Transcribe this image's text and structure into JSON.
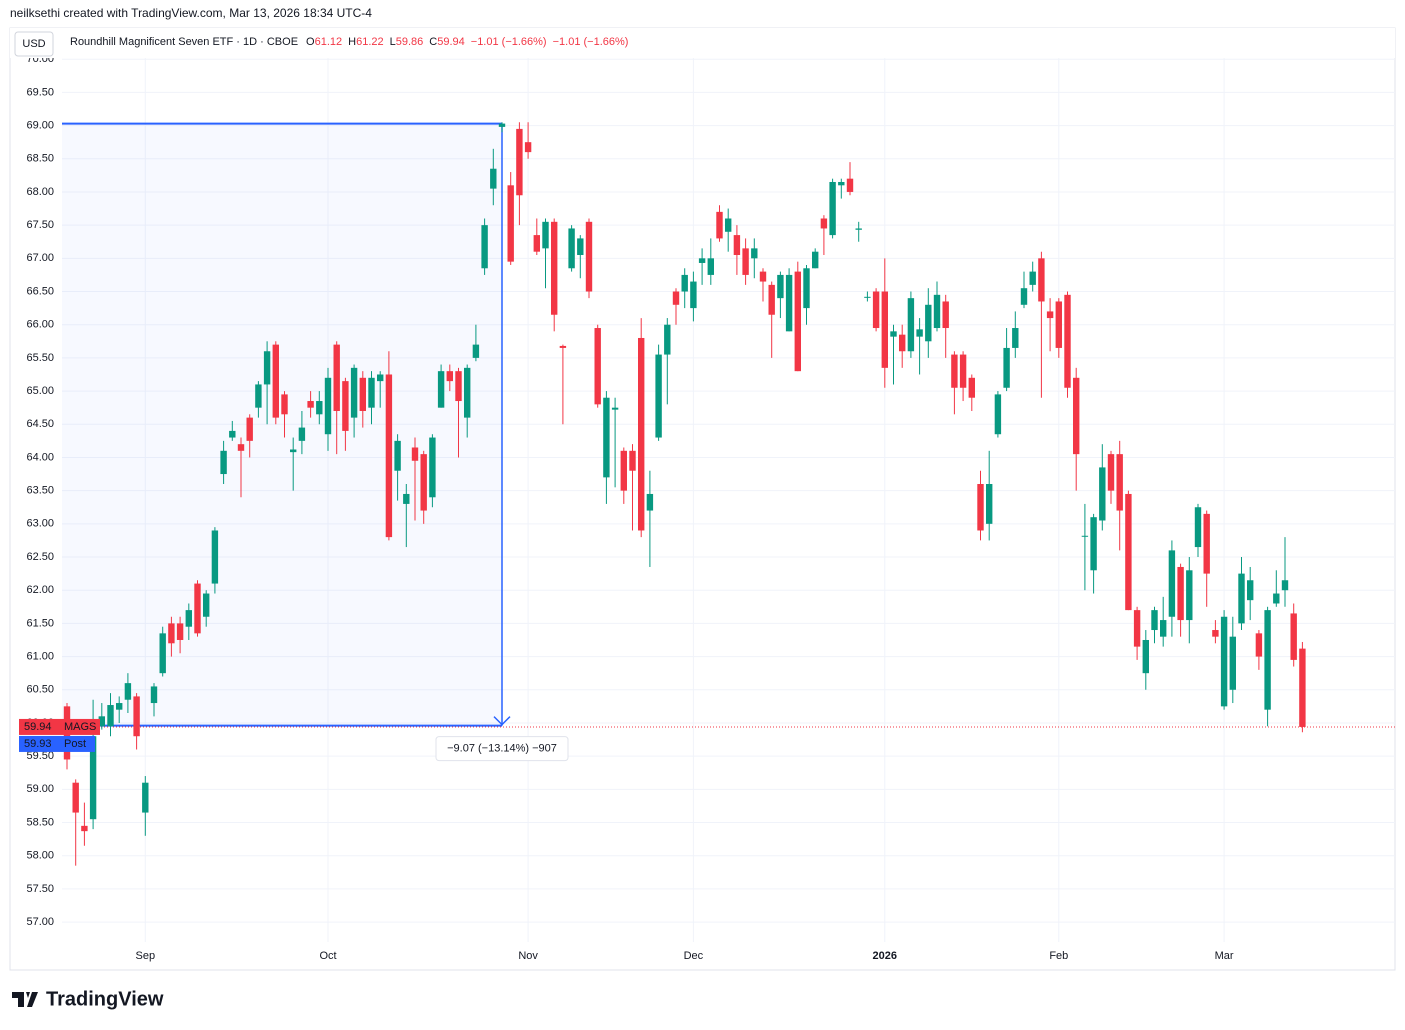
{
  "header": {
    "credit": "neilksethi created with TradingView.com, Mar 13, 2026 18:34 UTC-4",
    "currency": "USD",
    "logo": "TradingView"
  },
  "chart_data": {
    "type": "candlestick",
    "title": "Roundhill Magnificent Seven ETF · 1D · CBOE",
    "ohlc_legend": [
      {
        "key": "O",
        "text": "61.12"
      },
      {
        "key": "H",
        "text": "61.22"
      },
      {
        "key": "L",
        "text": "59.86"
      },
      {
        "key": "C",
        "text": "59.94"
      }
    ],
    "change": "−1.01 (−1.66%)",
    "change_post": "−1.01 (−1.66%)",
    "categories": [
      null,
      null,
      null,
      null,
      null,
      null,
      null,
      null,
      null,
      "Sep",
      null,
      null,
      null,
      null,
      null,
      null,
      null,
      null,
      null,
      null,
      null,
      null,
      null,
      null,
      null,
      null,
      null,
      null,
      null,
      null,
      "Oct",
      null,
      null,
      null,
      null,
      null,
      null,
      null,
      null,
      null,
      null,
      null,
      null,
      null,
      null,
      null,
      null,
      null,
      null,
      null,
      null,
      null,
      null,
      "Nov",
      null,
      null,
      null,
      null,
      null,
      null,
      null,
      null,
      null,
      null,
      null,
      null,
      null,
      null,
      null,
      null,
      null,
      null,
      "Dec",
      null,
      null,
      null,
      null,
      null,
      null,
      null,
      null,
      null,
      null,
      null,
      null,
      null,
      null,
      null,
      null,
      null,
      null,
      null,
      null,
      null,
      "2026",
      null,
      null,
      null,
      null,
      null,
      null,
      null,
      null,
      null,
      null,
      null,
      null,
      null,
      null,
      null,
      null,
      null,
      null,
      null,
      "Feb",
      null,
      null,
      null,
      null,
      null,
      null,
      null,
      null,
      null,
      null,
      null,
      null,
      null,
      null,
      null,
      null,
      null,
      null,
      "Mar",
      null,
      null,
      null,
      null,
      null,
      null,
      null,
      null,
      null
    ],
    "series": [
      {
        "name": "MAGS",
        "up_color": "#089981",
        "down_color": "#f23645",
        "open": [
          60.25,
          59.1,
          58.45,
          58.55,
          59.95,
          59.95,
          60.2,
          60.35,
          60.4,
          58.65,
          60.3,
          60.75,
          61.5,
          61.5,
          61.45,
          62.1,
          61.6,
          62.1,
          63.75,
          64.3,
          64.2,
          64.6,
          64.75,
          65.1,
          65.7,
          64.95,
          64.08,
          64.25,
          64.85,
          64.65,
          64.35,
          65.7,
          65.15,
          64.6,
          65.2,
          64.75,
          65.15,
          65.25,
          63.8,
          63.3,
          64.15,
          64.05,
          63.4,
          64.75,
          65.3,
          65.3,
          64.6,
          65.5,
          66.85,
          68.05,
          68.98,
          68.1,
          68.95,
          68.75,
          67.35,
          67.15,
          67.55,
          65.68,
          66.85,
          67.05,
          67.55,
          65.95,
          63.7,
          64.72,
          64.1,
          64.1,
          65.8,
          63.2,
          64.3,
          65.55,
          66.5,
          66.5,
          66.25,
          66.93,
          66.75,
          67.7,
          67.4,
          67.35,
          67.15,
          67.0,
          66.8,
          66.6,
          66.4,
          65.9,
          66.8,
          66.25,
          66.85,
          67.6,
          67.35,
          68.1,
          68.2,
          67.43,
          66.42,
          66.5,
          66.5,
          65.82,
          65.85,
          65.6,
          65.82,
          65.75,
          65.95,
          66.35,
          65.55,
          65.55,
          65.2,
          63.6,
          63.0,
          64.35,
          65.05,
          65.65,
          66.3,
          66.6,
          67.0,
          66.2,
          66.35,
          66.45,
          65.2,
          62.82,
          62.3,
          63.05,
          64.05,
          64.05,
          63.45,
          61.7,
          60.75,
          61.4,
          61.3,
          61.6,
          62.35,
          61.55,
          62.65,
          63.15,
          61.4,
          60.25,
          60.5,
          61.5,
          61.85,
          61.35,
          60.2,
          61.8,
          62.0,
          61.65,
          61.12
        ],
        "high": [
          60.3,
          59.15,
          58.8,
          60.35,
          60.3,
          60.45,
          60.4,
          60.75,
          60.45,
          59.2,
          60.6,
          61.45,
          61.6,
          61.6,
          61.8,
          62.15,
          62.0,
          62.95,
          64.25,
          64.55,
          64.3,
          64.65,
          65.15,
          65.75,
          65.75,
          65.0,
          64.3,
          64.7,
          65.0,
          65.0,
          65.35,
          65.75,
          65.2,
          65.4,
          65.3,
          65.3,
          65.3,
          65.6,
          64.35,
          63.6,
          64.3,
          64.1,
          64.35,
          65.4,
          65.4,
          65.35,
          65.4,
          66.0,
          67.6,
          68.65,
          69.05,
          68.3,
          69.05,
          69.05,
          67.6,
          67.6,
          67.6,
          65.7,
          67.5,
          67.35,
          67.6,
          66.0,
          65.0,
          64.9,
          64.15,
          64.2,
          66.1,
          63.8,
          65.7,
          66.1,
          66.55,
          66.85,
          66.8,
          67.15,
          67.3,
          67.8,
          67.75,
          67.5,
          67.3,
          67.3,
          66.85,
          66.65,
          66.8,
          66.85,
          66.95,
          66.9,
          67.15,
          67.65,
          68.2,
          68.2,
          68.45,
          67.55,
          66.5,
          66.55,
          67.0,
          66.0,
          66.0,
          66.5,
          66.1,
          66.55,
          66.65,
          66.45,
          65.6,
          65.6,
          65.25,
          63.8,
          64.1,
          65.0,
          65.95,
          66.2,
          66.8,
          66.95,
          67.1,
          66.4,
          66.4,
          66.5,
          65.35,
          63.3,
          63.15,
          64.2,
          64.1,
          64.25,
          63.5,
          61.75,
          61.4,
          61.75,
          61.9,
          62.75,
          62.4,
          62.5,
          63.3,
          63.2,
          61.55,
          61.7,
          61.6,
          62.5,
          62.35,
          61.4,
          61.75,
          62.3,
          62.8,
          61.8,
          61.22
        ],
        "low": [
          59.3,
          57.85,
          58.15,
          58.4,
          59.9,
          59.8,
          60.0,
          60.15,
          59.6,
          58.3,
          60.1,
          60.7,
          61.0,
          61.05,
          61.25,
          61.3,
          61.45,
          61.95,
          63.6,
          64.25,
          63.4,
          64.0,
          64.6,
          64.5,
          64.5,
          64.3,
          63.5,
          64.05,
          64.6,
          64.5,
          64.1,
          64.05,
          64.1,
          64.3,
          64.45,
          64.5,
          64.75,
          62.75,
          63.35,
          62.65,
          63.05,
          63.0,
          63.25,
          64.75,
          65.0,
          64.0,
          64.3,
          65.45,
          66.75,
          67.8,
          68.9,
          66.9,
          67.5,
          68.5,
          67.05,
          66.55,
          65.9,
          64.5,
          66.8,
          66.7,
          66.4,
          64.75,
          63.3,
          63.55,
          63.3,
          62.9,
          62.8,
          62.35,
          64.25,
          64.8,
          66.0,
          66.25,
          66.05,
          66.6,
          66.6,
          67.25,
          67.1,
          66.75,
          66.6,
          66.7,
          66.35,
          65.5,
          66.1,
          65.9,
          65.3,
          66.0,
          66.85,
          67.05,
          67.3,
          67.9,
          67.95,
          67.25,
          66.35,
          65.9,
          65.05,
          65.1,
          65.35,
          65.5,
          65.25,
          65.5,
          65.9,
          65.5,
          64.65,
          64.85,
          64.7,
          62.75,
          62.75,
          64.3,
          65.0,
          65.5,
          66.25,
          66.5,
          64.9,
          65.6,
          65.5,
          64.9,
          63.5,
          62.0,
          61.95,
          62.9,
          63.3,
          62.6,
          61.7,
          60.95,
          60.5,
          61.2,
          61.15,
          61.3,
          61.3,
          61.2,
          62.5,
          61.75,
          61.2,
          60.2,
          60.3,
          61.4,
          61.55,
          60.8,
          59.95,
          61.75,
          61.75,
          60.85,
          59.86
        ],
        "close": [
          59.45,
          58.65,
          58.37,
          59.8,
          60.1,
          60.27,
          60.3,
          60.6,
          59.8,
          59.1,
          60.55,
          61.35,
          61.2,
          61.25,
          61.7,
          61.35,
          61.95,
          62.9,
          64.1,
          64.4,
          64.1,
          64.25,
          65.1,
          65.6,
          64.6,
          64.65,
          64.12,
          64.45,
          64.75,
          64.85,
          65.2,
          64.7,
          64.4,
          65.35,
          64.7,
          65.2,
          65.25,
          62.8,
          64.25,
          63.45,
          63.95,
          63.2,
          64.3,
          65.3,
          65.15,
          64.85,
          65.35,
          65.7,
          67.5,
          68.35,
          69.03,
          66.95,
          67.95,
          68.6,
          67.1,
          67.55,
          66.15,
          65.65,
          67.45,
          67.3,
          66.5,
          64.8,
          64.9,
          64.75,
          63.5,
          63.8,
          62.9,
          63.45,
          65.55,
          66.0,
          66.3,
          66.75,
          66.65,
          67.0,
          67.0,
          67.3,
          67.6,
          67.05,
          66.75,
          67.15,
          66.65,
          66.15,
          66.75,
          66.75,
          65.3,
          66.85,
          67.1,
          67.45,
          68.15,
          68.15,
          68.0,
          67.45,
          66.42,
          65.95,
          65.35,
          65.9,
          65.6,
          66.4,
          65.93,
          66.3,
          66.45,
          65.95,
          65.05,
          65.05,
          64.9,
          62.9,
          63.6,
          64.95,
          65.65,
          65.95,
          66.55,
          66.8,
          66.35,
          66.1,
          65.65,
          65.05,
          64.05,
          62.82,
          63.1,
          63.85,
          63.5,
          63.2,
          61.7,
          61.15,
          61.25,
          61.7,
          61.55,
          62.6,
          61.55,
          62.3,
          63.25,
          62.25,
          61.3,
          61.6,
          61.3,
          62.25,
          62.15,
          61.0,
          61.7,
          61.95,
          62.15,
          60.95,
          59.94
        ]
      }
    ],
    "last_price": 59.94,
    "post_price": 59.93,
    "post_label": "Post",
    "post_color": "#2962ff",
    "measure": {
      "from": 69.03,
      "to": 59.96,
      "label": "−9.07 (−13.14%) −907",
      "color": "#2962ff"
    },
    "ylim": [
      56.7,
      70.47
    ],
    "yticks": [
      {
        "value": 57,
        "label": "57.00"
      },
      {
        "value": 57.5,
        "label": "57.50"
      },
      {
        "value": 58,
        "label": "58.00"
      },
      {
        "value": 58.5,
        "label": "58.50"
      },
      {
        "value": 59,
        "label": "59.00"
      },
      {
        "value": 59.5,
        "label": "59.50"
      },
      {
        "value": 60,
        "label": "60.00"
      },
      {
        "value": 60.5,
        "label": "60.50"
      },
      {
        "value": 61,
        "label": "61.00"
      },
      {
        "value": 61.5,
        "label": "61.50"
      },
      {
        "value": 62,
        "label": "62.00"
      },
      {
        "value": 62.5,
        "label": "62.50"
      },
      {
        "value": 63,
        "label": "63.00"
      },
      {
        "value": 63.5,
        "label": "63.50"
      },
      {
        "value": 64,
        "label": "64.00"
      },
      {
        "value": 64.5,
        "label": "64.50"
      },
      {
        "value": 65,
        "label": "65.00"
      },
      {
        "value": 65.5,
        "label": "65.50"
      },
      {
        "value": 66,
        "label": "66.00"
      },
      {
        "value": 66.5,
        "label": "66.50"
      },
      {
        "value": 67,
        "label": "67.00"
      },
      {
        "value": 67.5,
        "label": "67.50"
      },
      {
        "value": 68,
        "label": "68.00"
      },
      {
        "value": 68.5,
        "label": "68.50"
      },
      {
        "value": 69,
        "label": "69.00"
      },
      {
        "value": 69.5,
        "label": "69.50"
      },
      {
        "value": 70,
        "label": "70.00"
      }
    ],
    "grid": true
  }
}
